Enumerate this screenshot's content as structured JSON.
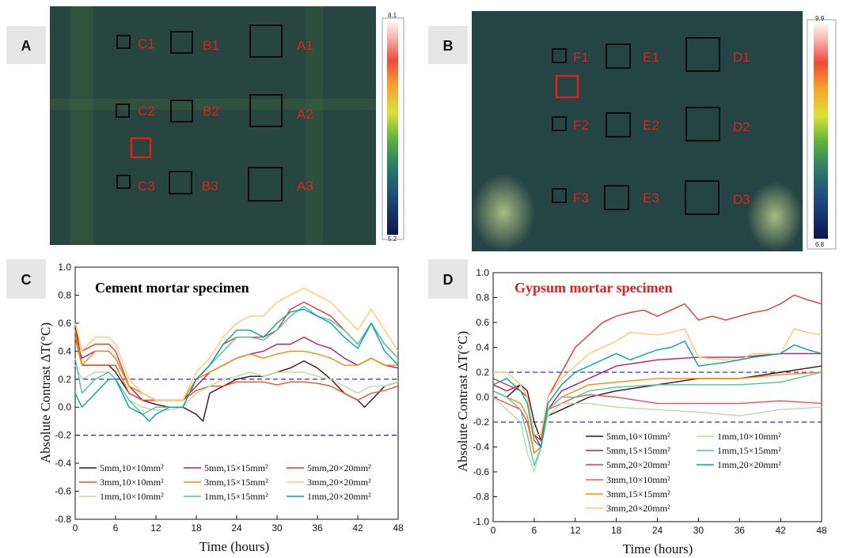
{
  "panels": {
    "a": "A",
    "b": "B",
    "c": "C",
    "d": "D"
  },
  "thermal_a": {
    "labels": [
      "C1",
      "B1",
      "A1",
      "C2",
      "B2",
      "A2",
      "C3",
      "B3",
      "A3"
    ],
    "colorbar_max": "8.1",
    "colorbar_min": "5.2"
  },
  "thermal_b": {
    "labels": [
      "F1",
      "E1",
      "D1",
      "F2",
      "E2",
      "D2",
      "F3",
      "E3",
      "D3"
    ],
    "colorbar_max": "9.9",
    "colorbar_min": "6.8"
  },
  "colors": {
    "thermal_bg": "#2f4e3a",
    "defect_box": "#0d0d0d",
    "reference_box": "#e0201e",
    "threshold": "#2b2bd6",
    "title_c": "#000000",
    "title_d": "#e0201e"
  },
  "chart_data": [
    {
      "type": "line",
      "title": "Cement mortar specimen",
      "xlabel": "Time (hours)",
      "ylabel": "Absolute Contrast ΔT(°C)",
      "xlim": [
        0,
        48
      ],
      "ylim": [
        -0.8,
        1.0
      ],
      "xticks": [
        "0",
        "6",
        "12",
        "18",
        "24",
        "30",
        "36",
        "42",
        "48"
      ],
      "yticks": [
        "-0.8",
        "-0.6",
        "-0.4",
        "-0.2",
        "0.0",
        "0.2",
        "0.4",
        "0.6",
        "0.8",
        "1.0"
      ],
      "thresholds": [
        0.2,
        -0.2
      ],
      "legend": [
        "5mm,10×10mm²",
        "5mm,15×15mm²",
        "5mm,20×20mm²",
        "3mm,10×10mm²",
        "3mm,15×15mm²",
        "3mm,20×20mm²",
        "1mm,10×10mm²",
        "1mm,15×15mm²",
        "1mm,20×20mm²"
      ],
      "series": [
        {
          "name": "5mm,10×10mm²",
          "color": "#4a0a1a",
          "x": [
            0,
            1,
            3,
            5,
            6,
            8,
            10,
            12,
            14,
            16,
            18,
            19,
            20,
            22,
            24,
            26,
            28,
            30,
            32,
            34,
            36,
            38,
            40,
            42,
            43,
            44,
            46,
            48
          ],
          "values": [
            0.6,
            0.3,
            0.3,
            0.3,
            0.25,
            0.1,
            0.05,
            0.02,
            0.0,
            0.0,
            -0.05,
            -0.1,
            0.1,
            0.15,
            0.2,
            0.22,
            0.22,
            0.25,
            0.28,
            0.33,
            0.28,
            0.2,
            0.1,
            0.05,
            0.0,
            0.05,
            0.15,
            0.18
          ]
        },
        {
          "name": "5mm,15×15mm²",
          "color": "#c2185b",
          "x": [
            0,
            1,
            3,
            5,
            6,
            8,
            10,
            12,
            14,
            16,
            18,
            20,
            22,
            24,
            26,
            28,
            30,
            32,
            34,
            36,
            38,
            40,
            42,
            44,
            46,
            48
          ],
          "values": [
            0.5,
            0.35,
            0.4,
            0.4,
            0.35,
            0.15,
            0.05,
            0.05,
            0.05,
            0.05,
            0.15,
            0.25,
            0.3,
            0.35,
            0.38,
            0.4,
            0.45,
            0.45,
            0.5,
            0.45,
            0.42,
            0.35,
            0.3,
            0.35,
            0.3,
            0.28
          ]
        },
        {
          "name": "5mm,20×20mm²",
          "color": "#e53935",
          "x": [
            0,
            1,
            3,
            5,
            6,
            8,
            10,
            12,
            14,
            16,
            18,
            20,
            22,
            24,
            26,
            28,
            30,
            32,
            34,
            36,
            38,
            40,
            42,
            44,
            46,
            48
          ],
          "values": [
            0.6,
            0.4,
            0.45,
            0.45,
            0.4,
            0.15,
            0.1,
            0.05,
            0.05,
            0.05,
            0.2,
            0.3,
            0.45,
            0.5,
            0.5,
            0.5,
            0.55,
            0.7,
            0.75,
            0.7,
            0.65,
            0.55,
            0.45,
            0.6,
            0.45,
            0.35
          ]
        },
        {
          "name": "3mm,10×10mm²",
          "color": "#f4511e",
          "x": [
            0,
            1,
            3,
            5,
            6,
            8,
            10,
            12,
            14,
            16,
            18,
            20,
            22,
            24,
            26,
            28,
            30,
            32,
            34,
            36,
            38,
            40,
            42,
            44,
            46,
            48
          ],
          "values": [
            0.5,
            0.3,
            0.3,
            0.3,
            0.3,
            0.1,
            0.05,
            0.05,
            0.05,
            0.05,
            0.12,
            0.15,
            0.15,
            0.18,
            0.18,
            0.18,
            0.16,
            0.18,
            0.18,
            0.17,
            0.15,
            0.1,
            0.05,
            0.1,
            0.12,
            0.15
          ]
        },
        {
          "name": "3mm,15×15mm²",
          "color": "#fb8c00",
          "x": [
            0,
            1,
            3,
            5,
            6,
            8,
            10,
            12,
            14,
            16,
            18,
            20,
            22,
            24,
            26,
            28,
            30,
            32,
            34,
            36,
            38,
            40,
            42,
            44,
            46,
            48
          ],
          "values": [
            0.55,
            0.3,
            0.4,
            0.4,
            0.35,
            0.15,
            0.1,
            0.05,
            0.05,
            0.05,
            0.2,
            0.25,
            0.3,
            0.35,
            0.38,
            0.35,
            0.38,
            0.4,
            0.4,
            0.38,
            0.35,
            0.3,
            0.3,
            0.35,
            0.3,
            0.3
          ]
        },
        {
          "name": "3mm,20×20mm²",
          "color": "#ffc870",
          "x": [
            0,
            1,
            3,
            5,
            6,
            8,
            10,
            12,
            14,
            16,
            18,
            20,
            22,
            24,
            26,
            28,
            30,
            32,
            34,
            36,
            38,
            40,
            42,
            44,
            46,
            48
          ],
          "values": [
            0.6,
            0.4,
            0.5,
            0.5,
            0.45,
            0.2,
            0.1,
            0.05,
            0.05,
            0.05,
            0.25,
            0.35,
            0.5,
            0.6,
            0.65,
            0.65,
            0.75,
            0.8,
            0.85,
            0.8,
            0.75,
            0.65,
            0.55,
            0.7,
            0.55,
            0.4
          ]
        },
        {
          "name": "1mm,10×10mm²",
          "color": "#b8dca0",
          "x": [
            0,
            1,
            3,
            5,
            6,
            8,
            10,
            12,
            14,
            16,
            18,
            20,
            22,
            24,
            26,
            28,
            30,
            32,
            34,
            36,
            38,
            40,
            42,
            44,
            46,
            48
          ],
          "values": [
            0.3,
            0.2,
            0.25,
            0.25,
            0.2,
            0.05,
            0.0,
            -0.02,
            -0.02,
            0.0,
            0.1,
            0.15,
            0.2,
            0.22,
            0.25,
            0.22,
            0.25,
            0.25,
            0.25,
            0.22,
            0.2,
            0.15,
            0.1,
            0.15,
            0.15,
            0.18
          ]
        },
        {
          "name": "1mm,15×15mm²",
          "color": "#4dc6a0",
          "x": [
            0,
            1,
            3,
            5,
            6,
            8,
            10,
            12,
            14,
            16,
            18,
            20,
            22,
            24,
            26,
            28,
            30,
            32,
            34,
            36,
            38,
            40,
            42,
            44,
            46,
            48
          ],
          "values": [
            0.35,
            0.1,
            0.2,
            0.25,
            0.2,
            0.05,
            -0.05,
            0.0,
            0.0,
            0.0,
            0.2,
            0.3,
            0.4,
            0.5,
            0.5,
            0.48,
            0.55,
            0.65,
            0.72,
            0.65,
            0.62,
            0.55,
            0.45,
            0.6,
            0.45,
            0.35
          ]
        },
        {
          "name": "1mm,20×20mm²",
          "color": "#00a5a5",
          "x": [
            0,
            1,
            3,
            5,
            6,
            8,
            10,
            11,
            12,
            14,
            16,
            18,
            20,
            22,
            24,
            26,
            28,
            30,
            32,
            34,
            36,
            38,
            40,
            42,
            44,
            46,
            48
          ],
          "values": [
            0.1,
            0.0,
            0.1,
            0.2,
            0.2,
            0.0,
            -0.05,
            -0.1,
            -0.05,
            0.0,
            0.0,
            0.2,
            0.3,
            0.45,
            0.55,
            0.55,
            0.5,
            0.6,
            0.68,
            0.7,
            0.65,
            0.6,
            0.5,
            0.42,
            0.6,
            0.4,
            0.3
          ]
        }
      ]
    },
    {
      "type": "line",
      "title": "Gypsum mortar specimen",
      "xlabel": "Time (hours)",
      "ylabel": "Absolute Contrast ΔT(°C)",
      "xlim": [
        0,
        48
      ],
      "ylim": [
        -1.0,
        1.0
      ],
      "xticks": [
        "0",
        "6",
        "12",
        "18",
        "24",
        "30",
        "36",
        "42",
        "48"
      ],
      "yticks": [
        "-1.0",
        "-0.8",
        "-0.6",
        "-0.4",
        "-0.2",
        "0.0",
        "0.2",
        "0.4",
        "0.6",
        "0.8",
        "1.0"
      ],
      "thresholds": [
        0.2,
        -0.2
      ],
      "legend": [
        "5mm,10×10mm²",
        "5mm,15×15mm²",
        "5mm,20×20mm²",
        "3mm,10×10mm²",
        "3mm,15×15mm²",
        "3mm,20×20mm²",
        "1mm,10×10mm²",
        "1mm,15×15mm²",
        "1mm,20×20mm²"
      ],
      "series": [
        {
          "name": "5mm,10×10mm²",
          "color": "#4a0a1a",
          "x": [
            0,
            2,
            4,
            5,
            6,
            7,
            8,
            10,
            12,
            14,
            18,
            24,
            30,
            36,
            42,
            48
          ],
          "values": [
            0.05,
            0.0,
            0.1,
            0.05,
            -0.2,
            -0.35,
            -0.15,
            -0.1,
            -0.05,
            0.0,
            0.05,
            0.1,
            0.15,
            0.15,
            0.2,
            0.25
          ]
        },
        {
          "name": "5mm,15×15mm²",
          "color": "#c2185b",
          "x": [
            0,
            2,
            4,
            5,
            6,
            7,
            8,
            10,
            12,
            14,
            18,
            24,
            30,
            36,
            42,
            48
          ],
          "values": [
            0.1,
            0.05,
            0.1,
            0.0,
            -0.3,
            -0.4,
            -0.1,
            0.05,
            0.1,
            0.15,
            0.25,
            0.3,
            0.32,
            0.32,
            0.35,
            0.35
          ]
        },
        {
          "name": "5mm,20×20mm²",
          "color": "#e53935",
          "x": [
            0,
            2,
            4,
            5,
            6,
            7,
            8,
            10,
            12,
            14,
            16,
            18,
            20,
            22,
            24,
            26,
            28,
            30,
            32,
            34,
            36,
            38,
            40,
            42,
            44,
            46,
            48
          ],
          "values": [
            0.15,
            0.1,
            0.05,
            0.0,
            -0.3,
            -0.35,
            0.0,
            0.2,
            0.4,
            0.5,
            0.6,
            0.65,
            0.68,
            0.7,
            0.65,
            0.7,
            0.75,
            0.62,
            0.65,
            0.62,
            0.65,
            0.68,
            0.7,
            0.75,
            0.82,
            0.78,
            0.75
          ]
        },
        {
          "name": "3mm,10×10mm²",
          "color": "#ef5350",
          "x": [
            0,
            2,
            4,
            5,
            6,
            7,
            8,
            10,
            12,
            14,
            18,
            24,
            30,
            36,
            42,
            48
          ],
          "values": [
            0.0,
            -0.05,
            -0.1,
            -0.2,
            -0.45,
            -0.4,
            -0.1,
            -0.05,
            0.0,
            0.02,
            0.0,
            -0.05,
            -0.05,
            -0.05,
            -0.03,
            -0.05
          ]
        },
        {
          "name": "3mm,15×15mm²",
          "color": "#fb8c00",
          "x": [
            0,
            2,
            4,
            5,
            6,
            7,
            8,
            10,
            12,
            14,
            18,
            24,
            30,
            36,
            42,
            48
          ],
          "values": [
            0.05,
            0.0,
            -0.05,
            -0.15,
            -0.45,
            -0.4,
            -0.1,
            0.0,
            0.05,
            0.1,
            0.12,
            0.15,
            0.15,
            0.15,
            0.18,
            0.2
          ]
        },
        {
          "name": "3mm,20×20mm²",
          "color": "#ffc870",
          "x": [
            0,
            2,
            4,
            5,
            6,
            7,
            8,
            10,
            12,
            14,
            18,
            20,
            24,
            26,
            28,
            30,
            34,
            36,
            38,
            42,
            44,
            46,
            48
          ],
          "values": [
            0.2,
            0.2,
            0.1,
            0.0,
            -0.3,
            -0.3,
            0.0,
            0.15,
            0.25,
            0.35,
            0.45,
            0.52,
            0.5,
            0.52,
            0.55,
            0.32,
            0.3,
            0.3,
            0.35,
            0.35,
            0.55,
            0.52,
            0.5
          ]
        },
        {
          "name": "1mm,10×10mm²",
          "color": "#b8dca0",
          "x": [
            0,
            2,
            4,
            5,
            6,
            7,
            8,
            10,
            12,
            14,
            18,
            24,
            30,
            36,
            42,
            48
          ],
          "values": [
            0.0,
            -0.1,
            -0.2,
            -0.45,
            -0.6,
            -0.4,
            -0.15,
            -0.05,
            -0.05,
            -0.05,
            -0.08,
            -0.1,
            -0.12,
            -0.15,
            -0.1,
            -0.08
          ]
        },
        {
          "name": "1mm,15×15mm²",
          "color": "#4dc6a0",
          "x": [
            0,
            2,
            4,
            5,
            6,
            7,
            8,
            10,
            12,
            14,
            18,
            24,
            30,
            36,
            42,
            48
          ],
          "values": [
            0.05,
            0.0,
            -0.1,
            -0.3,
            -0.55,
            -0.4,
            -0.1,
            0.0,
            0.0,
            0.05,
            0.08,
            0.1,
            0.1,
            0.1,
            0.12,
            0.2
          ]
        },
        {
          "name": "1mm,20×20mm²",
          "color": "#00a5a5",
          "x": [
            0,
            2,
            4,
            5,
            6,
            7,
            8,
            10,
            12,
            14,
            18,
            20,
            24,
            26,
            28,
            30,
            34,
            36,
            38,
            42,
            44,
            46,
            48
          ],
          "values": [
            0.1,
            0.15,
            0.05,
            -0.05,
            -0.35,
            -0.4,
            -0.05,
            0.1,
            0.2,
            0.25,
            0.35,
            0.3,
            0.38,
            0.4,
            0.45,
            0.25,
            0.28,
            0.3,
            0.32,
            0.35,
            0.42,
            0.38,
            0.35
          ]
        }
      ]
    }
  ]
}
